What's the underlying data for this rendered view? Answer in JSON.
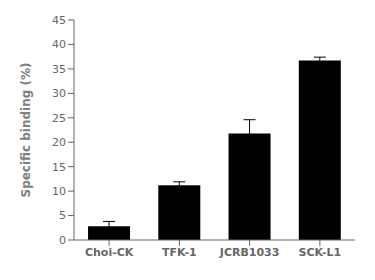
{
  "chart_data": {
    "type": "bar",
    "categories": [
      "Choi-CK",
      "TFK-1",
      "JCRB1033",
      "SCK-L1"
    ],
    "values": [
      2.8,
      11.2,
      21.8,
      36.7
    ],
    "errors": [
      1.0,
      0.7,
      2.8,
      0.7
    ],
    "color": "#000000",
    "ylabel": "Specific binding (%)",
    "ylim": [
      0,
      45
    ],
    "yticks": [
      0,
      5,
      10,
      15,
      20,
      25,
      30,
      35,
      40,
      45
    ],
    "grid": false
  }
}
